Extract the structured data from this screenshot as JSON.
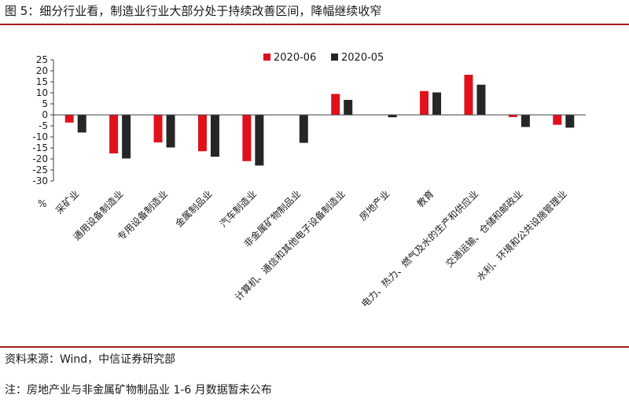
{
  "header": {
    "title": "图 5：细分行业看，制造业行业大部分处于持续改善区间，降幅继续收窄"
  },
  "footer": {
    "source": "资料来源：Wind，中信证券研究部",
    "note": "注：房地产业与非金属矿物制品业 1-6 月数据暂未公布"
  },
  "chart_data": {
    "type": "bar",
    "ylabel": "%",
    "ylim": [
      -30,
      25
    ],
    "yticks": [
      -30,
      -25,
      -20,
      -15,
      -10,
      -5,
      0,
      5,
      10,
      15,
      20,
      25
    ],
    "grid": false,
    "legend_position": "top-center",
    "categories": [
      "采矿业",
      "通用设备制造业",
      "专用设备制造业",
      "金属制品业",
      "汽车制造业",
      "非金属矿物制品业",
      "计算机、通信和其他电子设备制造业",
      "房地产业",
      "教育",
      "电力、热力、燃气及水的生产和供应业",
      "交通运输、仓储和邮政业",
      "水利、环境和公共设施管理业"
    ],
    "series": [
      {
        "name": "2020-06",
        "color": "#e0111b",
        "values": [
          -3.5,
          -17.5,
          -12.5,
          -16.5,
          -21,
          null,
          9.5,
          null,
          10.8,
          18.2,
          -1,
          -4.5
        ]
      },
      {
        "name": "2020-05",
        "color": "#262626",
        "values": [
          -8,
          -19.8,
          -14.8,
          -19,
          -23,
          -12.7,
          6.8,
          -1.1,
          10.2,
          13.7,
          -5.5,
          -5.8
        ]
      }
    ]
  }
}
